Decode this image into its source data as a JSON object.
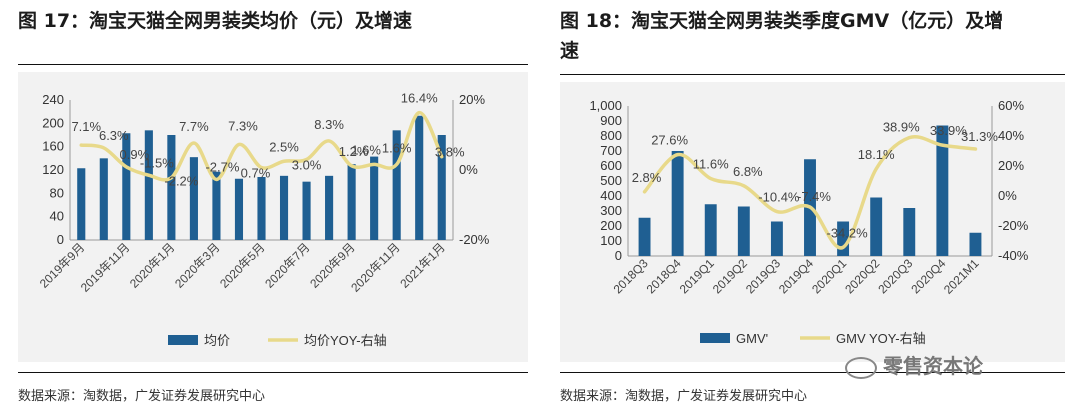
{
  "left": {
    "title": "图 17：淘宝天猫全网男装类均价（元）及增速",
    "source": "数据来源：淘数据，广发证券发展研究中心",
    "chart_data": {
      "type": "bar+line",
      "title": "淘宝天猫全网男装类均价（元）及增速",
      "categories": [
        "2019年9月",
        "2019年10月",
        "2019年11月",
        "2019年12月",
        "2020年1月",
        "2020年2月",
        "2020年3月",
        "2020年4月",
        "2020年5月",
        "2020年6月",
        "2020年7月",
        "2020年8月",
        "2020年9月",
        "2020年10月",
        "2020年11月",
        "2020年12月",
        "2021年1月"
      ],
      "tick_labels": [
        "2019年9月",
        "2019年11月",
        "2020年1月",
        "2020年3月",
        "2020年5月",
        "2020年7月",
        "2020年9月",
        "2020年11月",
        "2021年1月"
      ],
      "series": [
        {
          "name": "均价",
          "type": "bar",
          "axis": "left",
          "values": [
            123,
            140,
            183,
            188,
            180,
            142,
            117,
            105,
            108,
            110,
            100,
            110,
            130,
            143,
            188,
            213,
            180
          ]
        },
        {
          "name": "均价YOY-右轴",
          "type": "line",
          "axis": "right",
          "values": [
            7.1,
            6.3,
            0.9,
            -1.5,
            -2.2,
            7.7,
            -2.7,
            7.3,
            0.7,
            2.5,
            3.0,
            8.3,
            1.2,
            1.6,
            1.6,
            16.4,
            3.8
          ]
        }
      ],
      "line_labels": [
        "7.1%",
        "6.3%",
        "0.9%",
        "-1.5%",
        "-2.2%",
        "7.7%",
        "-2.7%",
        "7.3%",
        "0.7%",
        "2.5%",
        "3.0%",
        "8.3%",
        "1.2%",
        "1.6%",
        "1.6%",
        "16.4%",
        "3.8%"
      ],
      "ylim_left": [
        0,
        240
      ],
      "yticks_left": [
        "240",
        "200",
        "160",
        "120",
        "80",
        "40",
        "0"
      ],
      "ylim_right": [
        -20,
        20
      ],
      "yticks_right": [
        "20%",
        "0%",
        "-20%"
      ],
      "legend": [
        "均价",
        "均价YOY-右轴"
      ],
      "legend_position": "bottom"
    }
  },
  "right": {
    "title_line1": "图 18：淘宝天猫全网男装类季度GMV（亿元）及增",
    "title_line2": "速",
    "source": "数据来源：淘数据，广发证券发展研究中心",
    "watermark": "零售资本论",
    "chart_data": {
      "type": "bar+line",
      "title": "淘宝天猫全网男装类季度GMV（亿元）及增速",
      "categories": [
        "2018Q3",
        "2018Q4",
        "2019Q1",
        "2019Q2",
        "2019Q3",
        "2019Q4",
        "2020Q1",
        "2020Q2",
        "2020Q3",
        "2020Q4",
        "2021M1"
      ],
      "series": [
        {
          "name": "GMV'",
          "type": "bar",
          "axis": "left",
          "values": [
            255,
            700,
            345,
            330,
            230,
            645,
            230,
            390,
            320,
            870,
            155
          ]
        },
        {
          "name": "GMV YOY-右轴",
          "type": "line",
          "axis": "right",
          "values": [
            2.8,
            27.6,
            11.6,
            6.8,
            -10.4,
            -7.4,
            -34.2,
            18.1,
            38.9,
            33.9,
            31.3
          ]
        }
      ],
      "line_labels": [
        "2.8%",
        "27.6%",
        "11.6%",
        "6.8%",
        "-10.4%",
        "-7.4%",
        "-34.2%",
        "18.1%",
        "38.9%",
        "33.9%",
        "31.3%"
      ],
      "ylim_left": [
        0,
        1000
      ],
      "yticks_left": [
        "1,000",
        "900",
        "800",
        "700",
        "600",
        "500",
        "400",
        "300",
        "200",
        "100",
        "0"
      ],
      "ylim_right": [
        -40,
        60
      ],
      "yticks_right": [
        "60%",
        "40%",
        "20%",
        "0%",
        "-20%",
        "-40%"
      ],
      "legend": [
        "GMV'",
        "GMV YOY-右轴"
      ],
      "legend_position": "bottom"
    }
  },
  "colors": {
    "bar": "#1f5f92",
    "line": "#e8d98a",
    "box": "#f2f2f2",
    "axis": "#999999"
  }
}
